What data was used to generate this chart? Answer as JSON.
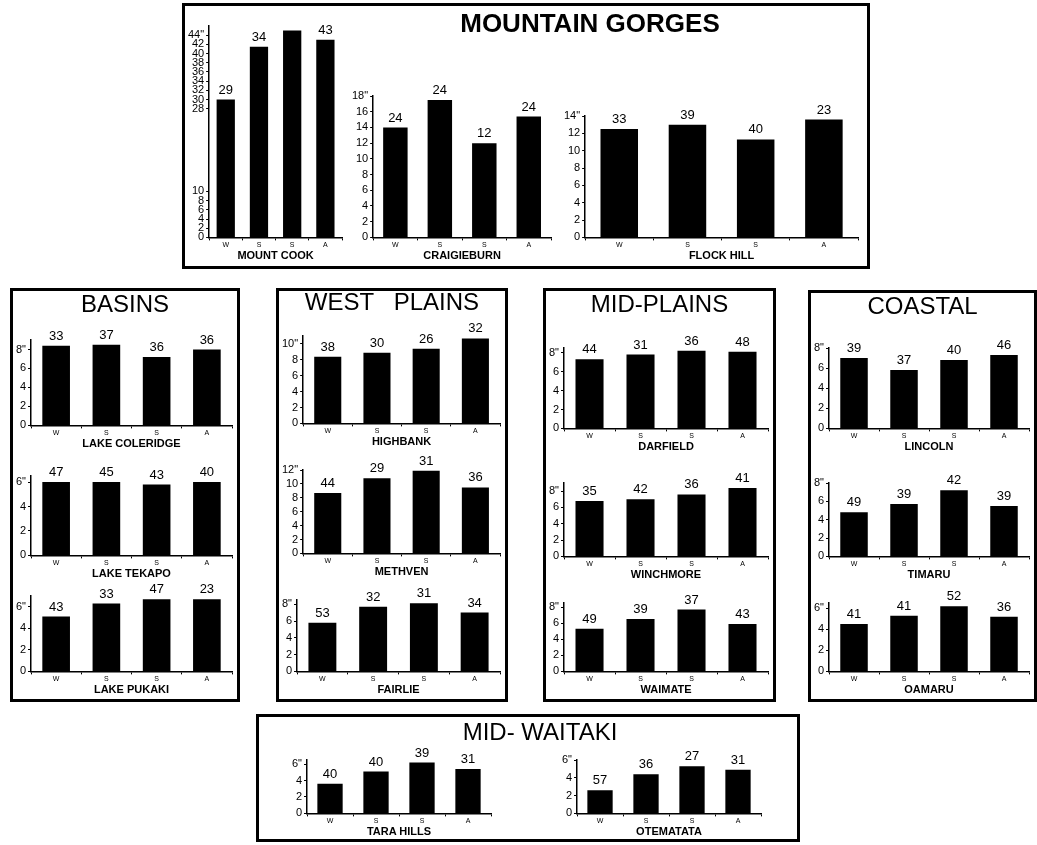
{
  "chart_data": [
    {
      "type": "bar",
      "xlabel": "MOUNT COOK",
      "categories": [
        "W",
        "S",
        "S",
        "A"
      ],
      "values": [
        30,
        41.5,
        45,
        43
      ],
      "annotations": [
        {
          "text": "29",
          "x": "W",
          "y": 30
        },
        {
          "text": "34",
          "x": "S",
          "y": 41.5
        },
        {
          "text": "43",
          "x": "A",
          "y": 43
        }
      ],
      "color": "#000000",
      "ylim": [
        0,
        46
      ],
      "yticks": [
        0,
        2,
        4,
        6,
        8,
        10,
        28,
        30,
        32,
        34,
        36,
        38,
        40,
        42,
        {
          "value": 44,
          "label": "44\""
        }
      ]
    },
    {
      "type": "bar",
      "xlabel": "CRAIGIEBURN",
      "categories": [
        "W",
        "S",
        "S",
        "A"
      ],
      "values": [
        14,
        17.5,
        12,
        15.4
      ],
      "annotations": [
        {
          "text": "24",
          "x": "W",
          "y": 14
        },
        {
          "text": "24",
          "x": "S",
          "y": 17.5
        },
        "12",
        {
          "text": "24",
          "x": "A",
          "y": 15.4
        }
      ],
      "color": "#000000",
      "ylim": [
        0,
        18
      ],
      "yticks": [
        0,
        2,
        4,
        6,
        8,
        10,
        12,
        14,
        16,
        {
          "value": 18,
          "label": "18\""
        }
      ]
    },
    {
      "type": "bar",
      "title": "MOUNTAIN GORGES",
      "xlabel": "FLOCK HILL",
      "categories": [
        "W",
        "S",
        "S",
        "A"
      ],
      "values": [
        12.5,
        13,
        11.3,
        13.6
      ],
      "annotations": [
        {
          "text": "33",
          "x": "W",
          "y": 12.5
        },
        {
          "text": "39",
          "x": "S",
          "y": 13
        },
        "40",
        {
          "text": "23",
          "x": "A",
          "y": 13.6
        }
      ],
      "color": "#000000",
      "ylim": [
        0,
        14
      ],
      "yticks": [
        0,
        2,
        4,
        6,
        8,
        10,
        12,
        {
          "value": 14,
          "label": "14\""
        }
      ]
    },
    {
      "type": "bar",
      "title": "BASINS",
      "xlabel": "LAKE COLERIDGE",
      "categories": [
        "W",
        "S",
        "S",
        "A"
      ],
      "values": [
        8.4,
        8.5,
        7.2,
        8.0
      ],
      "annotations": [
        {
          "text": "33",
          "x": "W",
          "y": 8.4
        },
        {
          "text": "37",
          "x": "S",
          "y": 8.5
        },
        "36",
        {
          "text": "36",
          "x": "A",
          "y": 8.0
        }
      ],
      "color": "#000000",
      "ylim": [
        0,
        9
      ],
      "yticks": [
        0,
        2,
        4,
        6,
        {
          "value": 8,
          "label": "8\""
        }
      ]
    },
    {
      "type": "bar",
      "xlabel": "LAKE TEKAPO",
      "categories": [
        "W",
        "S",
        "S",
        "A"
      ],
      "values": [
        6.0,
        6.0,
        5.8,
        6.0
      ],
      "annotations": [
        {
          "text": "47",
          "x": "W",
          "y": 6.0
        },
        {
          "text": "45",
          "x": "S",
          "y": 6.0
        },
        "43",
        {
          "text": "40",
          "x": "A",
          "y": 6.0
        }
      ],
      "color": "#000000",
      "ylim": [
        0,
        6.5
      ],
      "yticks": [
        0,
        2,
        4,
        {
          "value": 6,
          "label": "6\""
        }
      ]
    },
    {
      "type": "bar",
      "xlabel": "LAKE PUKAKI",
      "categories": [
        "W",
        "S",
        "S",
        "A"
      ],
      "values": [
        5.1,
        6.3,
        6.7,
        6.7
      ],
      "annotations": [
        {
          "text": "43",
          "x": "W",
          "y": 5.1
        },
        {
          "text": "33",
          "x": "S",
          "y": 6.3
        },
        "47",
        {
          "text": "23",
          "x": "A",
          "y": 6.7
        }
      ],
      "color": "#000000",
      "ylim": [
        0,
        7
      ],
      "yticks": [
        0,
        2,
        4,
        {
          "value": 6,
          "label": "6\""
        }
      ]
    },
    {
      "type": "bar",
      "title": "WEST   PLAINS",
      "xlabel": "HIGHBANK",
      "categories": [
        "W",
        "S",
        "S",
        "A"
      ],
      "values": [
        8.4,
        8.9,
        9.4,
        10.7
      ],
      "annotations": [
        {
          "text": "38",
          "x": "W",
          "y": 8.4
        },
        {
          "text": "30",
          "x": "S",
          "y": 8.9
        },
        "26",
        {
          "text": "32",
          "x": "A",
          "y": 10.7
        }
      ],
      "color": "#000000",
      "ylim": [
        0,
        11
      ],
      "yticks": [
        0,
        2,
        4,
        6,
        8,
        {
          "value": 10,
          "label": "10\""
        }
      ]
    },
    {
      "type": "bar",
      "xlabel": "METHVEN",
      "categories": [
        "W",
        "S",
        "S",
        "A"
      ],
      "values": [
        8.7,
        10.8,
        11.9,
        9.5
      ],
      "annotations": [
        {
          "text": "44",
          "x": "W",
          "y": 8.7
        },
        {
          "text": "29",
          "x": "S",
          "y": 10.8
        },
        "31",
        {
          "text": "36",
          "x": "A",
          "y": 9.5
        }
      ],
      "color": "#000000",
      "ylim": [
        0,
        12
      ],
      "yticks": [
        0,
        2,
        4,
        6,
        8,
        10,
        {
          "value": 12,
          "label": "12\""
        }
      ]
    },
    {
      "type": "bar",
      "xlabel": "FAIRLIE",
      "categories": [
        "W",
        "S",
        "S",
        "A"
      ],
      "values": [
        5.8,
        7.7,
        8.1,
        7.0
      ],
      "annotations": [
        {
          "text": "53",
          "x": "W",
          "y": 5.8
        },
        {
          "text": "32",
          "x": "S",
          "y": 7.7
        },
        "31",
        {
          "text": "34",
          "x": "A",
          "y": 7.0
        }
      ],
      "color": "#000000",
      "ylim": [
        0,
        8.5
      ],
      "yticks": [
        0,
        2,
        4,
        6,
        {
          "value": 8,
          "label": "8\""
        }
      ]
    },
    {
      "type": "bar",
      "title": "MID-PLAINS",
      "xlabel": "DARFIELD",
      "categories": [
        "W",
        "S",
        "S",
        "A"
      ],
      "values": [
        7.3,
        7.8,
        8.2,
        8.1
      ],
      "annotations": [
        {
          "text": "44",
          "x": "W",
          "y": 7.3
        },
        {
          "text": "31",
          "x": "S",
          "y": 7.8
        },
        "36",
        {
          "text": "48",
          "x": "A",
          "y": 8.1
        }
      ],
      "color": "#000000",
      "ylim": [
        0,
        8.5
      ],
      "yticks": [
        0,
        2,
        4,
        6,
        {
          "value": 8,
          "label": "8\""
        }
      ]
    },
    {
      "type": "bar",
      "xlabel": "WINCHMORE",
      "categories": [
        "W",
        "S",
        "S",
        "A"
      ],
      "values": [
        6.8,
        7.0,
        7.6,
        8.4
      ],
      "annotations": [
        {
          "text": "35",
          "x": "W",
          "y": 6.8
        },
        {
          "text": "42",
          "x": "S",
          "y": 7.0
        },
        "36",
        {
          "text": "41",
          "x": "A",
          "y": 8.4
        }
      ],
      "color": "#000000",
      "ylim": [
        0,
        9
      ],
      "yticks": [
        0,
        2,
        4,
        6,
        {
          "value": 8,
          "label": "8\""
        }
      ]
    },
    {
      "type": "bar",
      "xlabel": "WAIMATE",
      "categories": [
        "W",
        "S",
        "S",
        "A"
      ],
      "values": [
        5.3,
        6.5,
        7.7,
        5.9
      ],
      "annotations": [
        {
          "text": "49",
          "x": "W",
          "y": 5.3
        },
        {
          "text": "39",
          "x": "S",
          "y": 6.5
        },
        "37",
        {
          "text": "43",
          "x": "A",
          "y": 5.9
        }
      ],
      "color": "#000000",
      "ylim": [
        0,
        8.5
      ],
      "yticks": [
        0,
        2,
        4,
        6,
        {
          "value": 8,
          "label": "8\""
        }
      ]
    },
    {
      "type": "bar",
      "title": "COASTAL",
      "xlabel": "LINCOLN",
      "categories": [
        "W",
        "S",
        "S",
        "A"
      ],
      "values": [
        7.0,
        5.8,
        6.8,
        7.3
      ],
      "annotations": [
        {
          "text": "39",
          "x": "W",
          "y": 7.0
        },
        {
          "text": "37",
          "x": "S",
          "y": 5.8
        },
        "40",
        {
          "text": "46",
          "x": "A",
          "y": 7.3
        }
      ],
      "color": "#000000",
      "ylim": [
        0,
        8
      ],
      "yticks": [
        0,
        2,
        4,
        6,
        {
          "value": 8,
          "label": "8\""
        }
      ]
    },
    {
      "type": "bar",
      "xlabel": "TIMARU",
      "categories": [
        "W",
        "S",
        "S",
        "A"
      ],
      "values": [
        4.8,
        5.7,
        7.2,
        5.5
      ],
      "annotations": [
        {
          "text": "49",
          "x": "W",
          "y": 4.8
        },
        {
          "text": "39",
          "x": "S",
          "y": 5.7
        },
        "42",
        {
          "text": "39",
          "x": "A",
          "y": 5.5
        }
      ],
      "color": "#000000",
      "ylim": [
        0,
        8
      ],
      "yticks": [
        0,
        2,
        4,
        6,
        {
          "value": 8,
          "label": "8\""
        }
      ]
    },
    {
      "type": "bar",
      "xlabel": "OAMARU",
      "categories": [
        "W",
        "S",
        "S",
        "A"
      ],
      "values": [
        4.5,
        5.3,
        6.2,
        5.2
      ],
      "annotations": [
        {
          "text": "41",
          "x": "W",
          "y": 4.5
        },
        {
          "text": "41",
          "x": "S",
          "y": 5.3
        },
        "52",
        {
          "text": "36",
          "x": "A",
          "y": 5.2
        }
      ],
      "color": "#000000",
      "ylim": [
        0,
        6.5
      ],
      "yticks": [
        0,
        2,
        4,
        {
          "value": 6,
          "label": "6\""
        }
      ]
    },
    {
      "type": "bar",
      "title": "MID- WAITAKI",
      "xlabel": "TARA HILLS",
      "categories": [
        "W",
        "S",
        "S",
        "A"
      ],
      "values": [
        3.6,
        5.1,
        6.2,
        5.4
      ],
      "annotations": [
        {
          "text": "40",
          "x": "W",
          "y": 3.6
        },
        {
          "text": "40",
          "x": "S",
          "y": 5.1
        },
        "39",
        {
          "text": "31",
          "x": "A",
          "y": 5.4
        }
      ],
      "color": "#000000",
      "ylim": [
        0,
        6.5
      ],
      "yticks": [
        0,
        2,
        4,
        {
          "value": 6,
          "label": "6\""
        }
      ]
    },
    {
      "type": "bar",
      "xlabel": "OTEMATATA",
      "categories": [
        "W",
        "S",
        "S",
        "A"
      ],
      "values": [
        2.6,
        4.4,
        5.3,
        4.9
      ],
      "annotations": [
        {
          "text": "57",
          "x": "W",
          "y": 2.6
        },
        {
          "text": "36",
          "x": "S",
          "y": 4.4
        },
        "27",
        {
          "text": "31",
          "x": "A",
          "y": 4.9
        }
      ],
      "color": "#000000",
      "ylim": [
        0,
        6
      ],
      "yticks": [
        0,
        2,
        4,
        {
          "value": 6,
          "label": "6\""
        }
      ]
    }
  ]
}
